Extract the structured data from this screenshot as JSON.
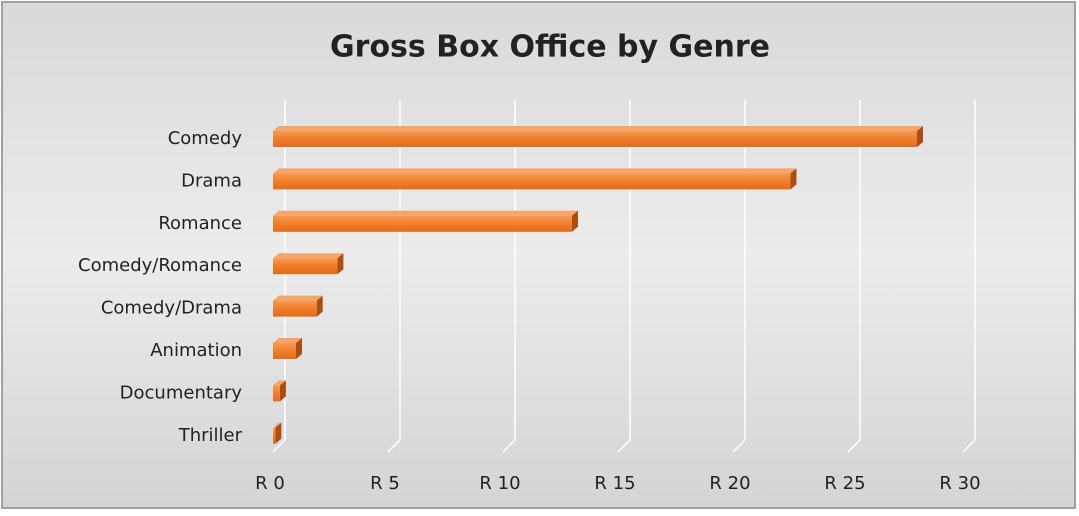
{
  "chart_data": {
    "type": "bar",
    "orientation": "horizontal",
    "title": "Gross Box Office by Genre",
    "categories": [
      "Comedy",
      "Drama",
      "Romance",
      "Comedy/Romance",
      "Comedy/Drama",
      "Animation",
      "Documentary",
      "Thriller"
    ],
    "values": [
      28.0,
      22.5,
      13.0,
      2.8,
      1.9,
      1.0,
      0.3,
      0.1
    ],
    "color": "#f07d2a",
    "xlim": [
      0,
      30
    ],
    "xticks": [
      {
        "value": 0,
        "label": "R 0"
      },
      {
        "value": 5,
        "label": "R 5"
      },
      {
        "value": 10,
        "label": "R 10"
      },
      {
        "value": 15,
        "label": "R 15"
      },
      {
        "value": 20,
        "label": "R 20"
      },
      {
        "value": 25,
        "label": "R 25"
      },
      {
        "value": 30,
        "label": "R 30"
      }
    ],
    "grid": true
  }
}
